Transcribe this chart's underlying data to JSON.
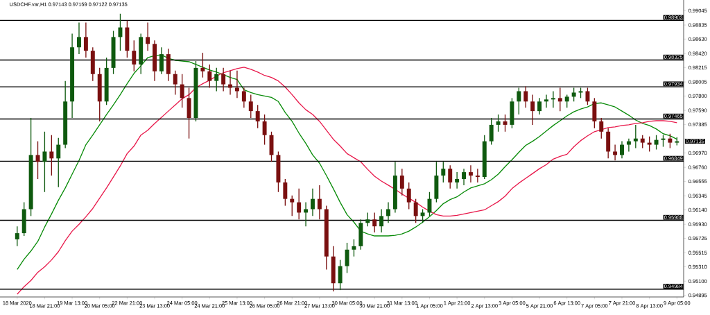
{
  "chart_data": {
    "type": "candlestick",
    "title": "USDCHF.var,H1  0.97143 0.97159 0.97122 0.97135",
    "categories": [
      "18 Mar 2020",
      null,
      null,
      null,
      "18 Mar 21:00",
      null,
      null,
      null,
      "19 Mar 13:00",
      null,
      null,
      null,
      "20 Mar 05:00",
      null,
      null,
      null,
      "22 Mar 21:00",
      null,
      null,
      null,
      "23 Mar 13:00",
      null,
      null,
      null,
      "24 Mar 05:00",
      null,
      null,
      null,
      "24 Mar 21:00",
      null,
      null,
      null,
      "25 Mar 13:00",
      null,
      null,
      null,
      "26 Mar 05:00",
      null,
      null,
      null,
      "26 Mar 21:00",
      null,
      null,
      null,
      "27 Mar 13:00",
      null,
      null,
      null,
      "30 Mar 05:00",
      null,
      null,
      null,
      "30 Mar 21:00",
      null,
      null,
      null,
      "31 Mar 13:00",
      null,
      null,
      null,
      "1 Apr 05:00",
      null,
      null,
      null,
      "1 Apr 21:00",
      null,
      null,
      null,
      "2 Apr 13:00",
      null,
      null,
      null,
      "3 Apr 05:00",
      null,
      null,
      null,
      "5 Apr 21:00",
      null,
      null,
      null,
      "6 Apr 13:00",
      null,
      null,
      null,
      "7 Apr 05:00",
      null,
      null,
      null,
      "7 Apr 21:00",
      null,
      null,
      null,
      "8 Apr 13:00",
      null,
      null,
      null,
      "9 Apr 05:00"
    ],
    "ohlc": [
      [
        0.9571,
        0.959,
        0.9561,
        0.958
      ],
      [
        0.958,
        0.9625,
        0.9576,
        0.9615
      ],
      [
        0.9615,
        0.9748,
        0.9605,
        0.9694
      ],
      [
        0.9694,
        0.9714,
        0.9659,
        0.9684
      ],
      [
        0.9684,
        0.9728,
        0.964,
        0.9699
      ],
      [
        0.9699,
        0.9723,
        0.9664,
        0.9689
      ],
      [
        0.9689,
        0.9719,
        0.9647,
        0.9709
      ],
      [
        0.9709,
        0.9802,
        0.9704,
        0.9772
      ],
      [
        0.9772,
        0.9871,
        0.9748,
        0.9851
      ],
      [
        0.9851,
        0.9887,
        0.9841,
        0.9866
      ],
      [
        0.9866,
        0.9887,
        0.9836,
        0.9846
      ],
      [
        0.9846,
        0.9851,
        0.9802,
        0.9812
      ],
      [
        0.9812,
        0.9821,
        0.9743,
        0.9772
      ],
      [
        0.9772,
        0.9836,
        0.9767,
        0.9821
      ],
      [
        0.9821,
        0.9875,
        0.9812,
        0.9866
      ],
      [
        0.9866,
        0.99,
        0.9846,
        0.988
      ],
      [
        0.988,
        0.989,
        0.9836,
        0.9846
      ],
      [
        0.9846,
        0.9861,
        0.9816,
        0.9826
      ],
      [
        0.9826,
        0.9871,
        0.9812,
        0.9866
      ],
      [
        0.9866,
        0.9887,
        0.9846,
        0.9856
      ],
      [
        0.9856,
        0.9861,
        0.9802,
        0.9816
      ],
      [
        0.9816,
        0.9851,
        0.9812,
        0.9841
      ],
      [
        0.9841,
        0.9849,
        0.9802,
        0.9812
      ],
      [
        0.9812,
        0.9817,
        0.9782,
        0.9797
      ],
      [
        0.9797,
        0.9812,
        0.9763,
        0.9777
      ],
      [
        0.9777,
        0.9792,
        0.9718,
        0.9748
      ],
      [
        0.9748,
        0.9831,
        0.9743,
        0.9821
      ],
      [
        0.9821,
        0.9843,
        0.9807,
        0.9816
      ],
      [
        0.9816,
        0.9826,
        0.9792,
        0.9802
      ],
      [
        0.9802,
        0.9821,
        0.9787,
        0.9812
      ],
      [
        0.9812,
        0.9821,
        0.9787,
        0.9797
      ],
      [
        0.9797,
        0.9817,
        0.9782,
        0.9792
      ],
      [
        0.9792,
        0.9817,
        0.9777,
        0.9787
      ],
      [
        0.9787,
        0.9792,
        0.9763,
        0.9772
      ],
      [
        0.9772,
        0.9782,
        0.9748,
        0.9758
      ],
      [
        0.9758,
        0.9767,
        0.9733,
        0.9743
      ],
      [
        0.9743,
        0.9753,
        0.9709,
        0.9723
      ],
      [
        0.9723,
        0.9728,
        0.9684,
        0.9694
      ],
      [
        0.9694,
        0.9699,
        0.964,
        0.9654
      ],
      [
        0.9654,
        0.9659,
        0.962,
        0.963
      ],
      [
        0.963,
        0.9635,
        0.9605,
        0.9625
      ],
      [
        0.9625,
        0.9645,
        0.96,
        0.961
      ],
      [
        0.961,
        0.9625,
        0.959,
        0.9615
      ],
      [
        0.9615,
        0.9645,
        0.9605,
        0.963
      ],
      [
        0.963,
        0.965,
        0.96,
        0.9615
      ],
      [
        0.9615,
        0.962,
        0.9527,
        0.9546
      ],
      [
        0.9546,
        0.9561,
        0.9495,
        0.9507
      ],
      [
        0.9507,
        0.9541,
        0.9497,
        0.9532
      ],
      [
        0.9532,
        0.9566,
        0.9522,
        0.9556
      ],
      [
        0.9556,
        0.9571,
        0.9546,
        0.9561
      ],
      [
        0.9561,
        0.96,
        0.9556,
        0.9595
      ],
      [
        0.9595,
        0.961,
        0.959,
        0.96
      ],
      [
        0.96,
        0.961,
        0.9581,
        0.959
      ],
      [
        0.959,
        0.9615,
        0.9581,
        0.9605
      ],
      [
        0.9605,
        0.9625,
        0.9595,
        0.9615
      ],
      [
        0.9615,
        0.9684,
        0.961,
        0.9664
      ],
      [
        0.9664,
        0.9674,
        0.9635,
        0.9645
      ],
      [
        0.9645,
        0.9654,
        0.9615,
        0.9625
      ],
      [
        0.9625,
        0.963,
        0.9595,
        0.9605
      ],
      [
        0.9605,
        0.9615,
        0.9595,
        0.961
      ],
      [
        0.961,
        0.964,
        0.9605,
        0.963
      ],
      [
        0.963,
        0.9684,
        0.9625,
        0.9664
      ],
      [
        0.9664,
        0.9684,
        0.9654,
        0.9674
      ],
      [
        0.9674,
        0.9679,
        0.9645,
        0.9654
      ],
      [
        0.9654,
        0.9669,
        0.9645,
        0.9659
      ],
      [
        0.9659,
        0.9674,
        0.965,
        0.9669
      ],
      [
        0.9669,
        0.9679,
        0.9654,
        0.9664
      ],
      [
        0.9664,
        0.9674,
        0.9654,
        0.9662
      ],
      [
        0.9662,
        0.9723,
        0.9659,
        0.9714
      ],
      [
        0.9714,
        0.9748,
        0.9709,
        0.9738
      ],
      [
        0.9738,
        0.9753,
        0.9728,
        0.9743
      ],
      [
        0.9743,
        0.9753,
        0.9728,
        0.9738
      ],
      [
        0.9738,
        0.9777,
        0.9733,
        0.9772
      ],
      [
        0.9772,
        0.9792,
        0.9753,
        0.9787
      ],
      [
        0.9787,
        0.9794,
        0.9763,
        0.9772
      ],
      [
        0.9772,
        0.9782,
        0.9738,
        0.9758
      ],
      [
        0.9758,
        0.9777,
        0.9753,
        0.9772
      ],
      [
        0.9772,
        0.9782,
        0.9763,
        0.9775
      ],
      [
        0.9775,
        0.9787,
        0.9763,
        0.9777
      ],
      [
        0.9777,
        0.9792,
        0.9758,
        0.9772
      ],
      [
        0.9772,
        0.9782,
        0.9763,
        0.9779
      ],
      [
        0.9779,
        0.9792,
        0.9772,
        0.9785
      ],
      [
        0.9785,
        0.9792,
        0.9777,
        0.9787
      ],
      [
        0.9787,
        0.9792,
        0.9767,
        0.9772
      ],
      [
        0.9772,
        0.9777,
        0.9733,
        0.9743
      ],
      [
        0.9743,
        0.9748,
        0.9718,
        0.9728
      ],
      [
        0.9728,
        0.9733,
        0.9689,
        0.9699
      ],
      [
        0.9699,
        0.9709,
        0.9686,
        0.9694
      ],
      [
        0.9694,
        0.9714,
        0.9689,
        0.9709
      ],
      [
        0.9709,
        0.9718,
        0.9699,
        0.9714
      ],
      [
        0.9714,
        0.9738,
        0.9704,
        0.9718
      ],
      [
        0.9718,
        0.9723,
        0.9704,
        0.9712
      ],
      [
        0.9712,
        0.9721,
        0.9699,
        0.9709
      ],
      [
        0.9709,
        0.9723,
        0.9702,
        0.9716
      ],
      [
        0.9716,
        0.9723,
        0.9706,
        0.9718
      ],
      [
        0.9718,
        0.9725,
        0.9704,
        0.9712
      ],
      [
        0.9712,
        0.972,
        0.9708,
        0.9714
      ]
    ],
    "colors": [
      "#0f5a0f",
      "#0f5a0f",
      "#0f5a0f",
      "#7a1010",
      "#0f5a0f",
      "#7a1010",
      "#0f5a0f",
      "#0f5a0f",
      "#0f5a0f",
      "#0f5a0f",
      "#7a1010",
      "#7a1010",
      "#7a1010",
      "#0f5a0f",
      "#0f5a0f",
      "#0f5a0f",
      "#7a1010",
      "#7a1010",
      "#0f5a0f",
      "#7a1010",
      "#7a1010",
      "#0f5a0f",
      "#7a1010",
      "#7a1010",
      "#7a1010",
      "#7a1010",
      "#0f5a0f",
      "#7a1010",
      "#7a1010",
      "#0f5a0f",
      "#7a1010",
      "#7a1010",
      "#7a1010",
      "#7a1010",
      "#7a1010",
      "#7a1010",
      "#7a1010",
      "#7a1010",
      "#7a1010",
      "#7a1010",
      "#7a1010",
      "#7a1010",
      "#0f5a0f",
      "#0f5a0f",
      "#7a1010",
      "#7a1010",
      "#7a1010",
      "#0f5a0f",
      "#0f5a0f",
      "#0f5a0f",
      "#0f5a0f",
      "#0f5a0f",
      "#7a1010",
      "#0f5a0f",
      "#0f5a0f",
      "#0f5a0f",
      "#7a1010",
      "#7a1010",
      "#7a1010",
      "#0f5a0f",
      "#0f5a0f",
      "#0f5a0f",
      "#0f5a0f",
      "#7a1010",
      "#0f5a0f",
      "#0f5a0f",
      "#7a1010",
      "#7a1010",
      "#0f5a0f",
      "#0f5a0f",
      "#0f5a0f",
      "#7a1010",
      "#0f5a0f",
      "#0f5a0f",
      "#7a1010",
      "#7a1010",
      "#0f5a0f",
      "#0f5a0f",
      "#0f5a0f",
      "#7a1010",
      "#0f5a0f",
      "#0f5a0f",
      "#0f5a0f",
      "#7a1010",
      "#7a1010",
      "#7a1010",
      "#7a1010",
      "#7a1010",
      "#0f5a0f",
      "#0f5a0f",
      "#0f5a0f",
      "#7a1010",
      "#7a1010",
      "#0f5a0f",
      "#0f5a0f",
      "#7a1010",
      "#0f5a0f"
    ],
    "series": [
      {
        "type": "line",
        "color": "#0a8c0a",
        "values": [
          0.9527,
          0.9542,
          0.9554,
          0.9568,
          0.9589,
          0.9608,
          0.9628,
          0.9646,
          0.9666,
          0.9686,
          0.9709,
          0.9723,
          0.9738,
          0.9753,
          0.9767,
          0.9782,
          0.9798,
          0.9813,
          0.9824,
          0.9836,
          0.9839,
          0.984,
          0.9835,
          0.9832,
          0.9831,
          0.983,
          0.9826,
          0.9822,
          0.9818,
          0.9815,
          0.9811,
          0.9807,
          0.9804,
          0.9789,
          0.9785,
          0.9782,
          0.978,
          0.9778,
          0.9772,
          0.9756,
          0.9743,
          0.9726,
          0.9711,
          0.9694,
          0.9682,
          0.9664,
          0.9645,
          0.9625,
          0.9607,
          0.9596,
          0.9583,
          0.9579,
          0.9576,
          0.9576,
          0.9576,
          0.9577,
          0.9579,
          0.9583,
          0.9589,
          0.9596,
          0.9604,
          0.9613,
          0.9623,
          0.9629,
          0.9633,
          0.964,
          0.9646,
          0.9649,
          0.9652,
          0.9658,
          0.9666,
          0.9677,
          0.9687,
          0.9698,
          0.9708,
          0.9714,
          0.9721,
          0.9729,
          0.9737,
          0.9744,
          0.9751,
          0.9757,
          0.9761,
          0.9764,
          0.9769,
          0.977,
          0.9767,
          0.9764,
          0.9758,
          0.9752,
          0.9745,
          0.974,
          0.9737,
          0.9732,
          0.9725,
          0.9722,
          0.9717
        ]
      },
      {
        "type": "line",
        "color": "#e8194b",
        "values": [
          0.9491,
          0.9502,
          0.9511,
          0.9523,
          0.9531,
          0.9541,
          0.9553,
          0.9569,
          0.9583,
          0.9593,
          0.9604,
          0.9616,
          0.9631,
          0.9646,
          0.9662,
          0.9678,
          0.9696,
          0.9707,
          0.9723,
          0.973,
          0.974,
          0.9749,
          0.9758,
          0.9767,
          0.9776,
          0.9782,
          0.9792,
          0.9798,
          0.9803,
          0.9809,
          0.9814,
          0.9817,
          0.982,
          0.9822,
          0.9819,
          0.9815,
          0.981,
          0.9807,
          0.9802,
          0.9793,
          0.9782,
          0.977,
          0.976,
          0.9753,
          0.9743,
          0.973,
          0.9717,
          0.9707,
          0.9696,
          0.969,
          0.9684,
          0.9673,
          0.9663,
          0.9656,
          0.965,
          0.9644,
          0.9637,
          0.9631,
          0.9625,
          0.9618,
          0.9612,
          0.9607,
          0.9605,
          0.9605,
          0.9606,
          0.9608,
          0.961,
          0.9612,
          0.9614,
          0.962,
          0.9626,
          0.9634,
          0.9645,
          0.9653,
          0.966,
          0.9667,
          0.9674,
          0.968,
          0.9688,
          0.9692,
          0.9695,
          0.9706,
          0.9715,
          0.9722,
          0.9728,
          0.9731,
          0.9734,
          0.9735,
          0.9737,
          0.9738,
          0.974,
          0.9741,
          0.9743,
          0.9744,
          0.9744,
          0.9743,
          0.9741
        ]
      }
    ],
    "ylim": [
      0.9487,
      0.992
    ],
    "yticks": [
      {
        "value": 0.99045,
        "label": "0.99045"
      },
      {
        "value": 0.98835,
        "label": "0.98835"
      },
      {
        "value": 0.9863,
        "label": "0.98630"
      },
      {
        "value": 0.9842,
        "label": "0.98420"
      },
      {
        "value": 0.98215,
        "label": "0.98215"
      },
      {
        "value": 0.98005,
        "label": "0.98005"
      },
      {
        "value": 0.978,
        "label": "0.97800"
      },
      {
        "value": 0.9759,
        "label": "0.97590"
      },
      {
        "value": 0.97385,
        "label": "0.97385"
      },
      {
        "value": 0.97175,
        "label": null
      },
      {
        "value": 0.9697,
        "label": "0.96970"
      },
      {
        "value": 0.9676,
        "label": "0.96760"
      },
      {
        "value": 0.96555,
        "label": "0.96555"
      },
      {
        "value": 0.96345,
        "label": "0.96345"
      },
      {
        "value": 0.9614,
        "label": "0.96140"
      },
      {
        "value": 0.9593,
        "label": "0.95930"
      },
      {
        "value": 0.95725,
        "label": "0.95725"
      },
      {
        "value": 0.95515,
        "label": "0.95515"
      },
      {
        "value": 0.9531,
        "label": "0.95310"
      },
      {
        "value": 0.951,
        "label": "0.95100"
      },
      {
        "value": 0.94895,
        "label": "0.94895"
      }
    ],
    "ref_lines": [
      {
        "axis": "y",
        "value": 0.98903,
        "label": "0.98903",
        "color": "#000000"
      },
      {
        "axis": "y",
        "value": 0.98325,
        "label": "0.98325",
        "color": "#000000"
      },
      {
        "axis": "y",
        "value": 0.97934,
        "label": "0.97934",
        "color": "#000000"
      },
      {
        "axis": "y",
        "value": 0.97465,
        "label": "0.97465",
        "color": "#000000"
      },
      {
        "axis": "y",
        "value": 0.96849,
        "label": "0.96849",
        "color": "#000000"
      },
      {
        "axis": "y",
        "value": 0.95988,
        "label": "0.95988",
        "color": "#000000"
      },
      {
        "axis": "y",
        "value": 0.94984,
        "label": "0.94984",
        "color": "#000000"
      }
    ],
    "annotations": [
      "0.97135"
    ]
  }
}
